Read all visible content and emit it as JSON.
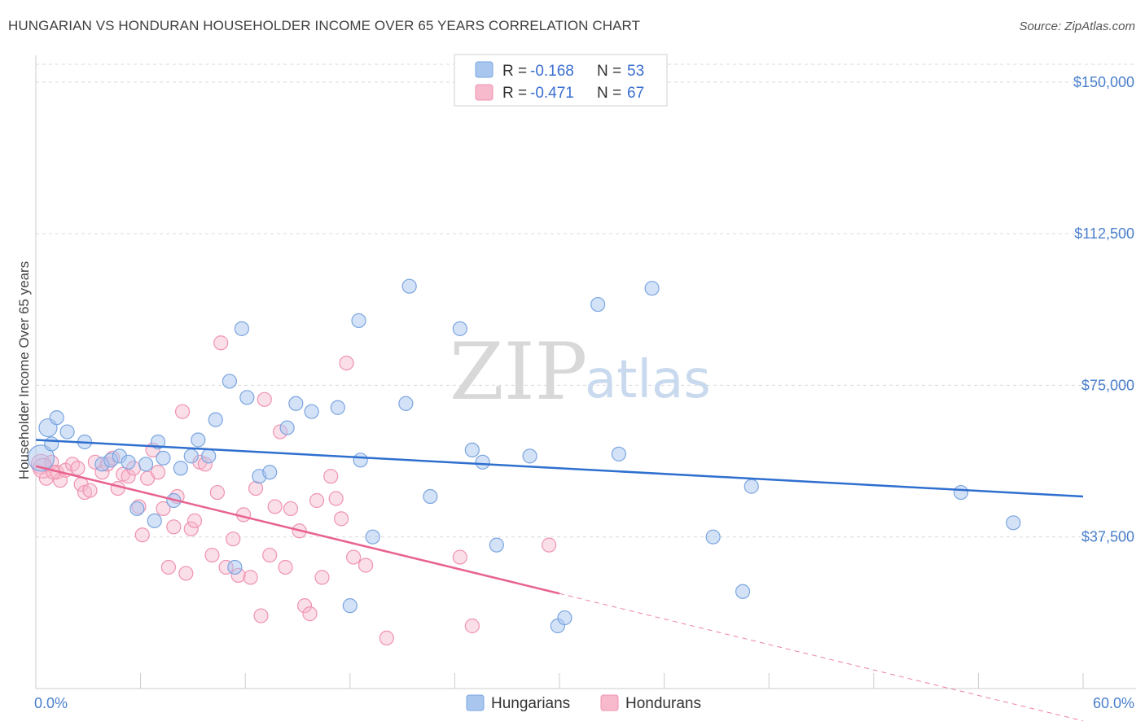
{
  "title": "HUNGARIAN VS HONDURAN HOUSEHOLDER INCOME OVER 65 YEARS CORRELATION CHART",
  "source": "Source: ZipAtlas.com",
  "watermark": {
    "zip": "ZIP",
    "atlas": "atlas"
  },
  "colors": {
    "hungarian_fill": "#a9c6ef",
    "hungarian_stroke": "#7aa5e0",
    "hungarian_line": "#2f6fcf",
    "honduran_fill": "#f7b9cc",
    "honduran_stroke": "#ef93b0",
    "honduran_line": "#e8638e",
    "grid": "#d9d9d9",
    "axis_text": "#4a7fcc"
  },
  "legend": {
    "rows": [
      {
        "r_label": "R = ",
        "r_value": "-0.168",
        "n_label": "N = ",
        "n_value": "53"
      },
      {
        "r_label": "R = ",
        "r_value": "-0.471",
        "n_label": "N = ",
        "n_value": "67"
      }
    ],
    "bottom": [
      "Hungarians",
      "Hondurans"
    ]
  },
  "chart_data": {
    "type": "scatter",
    "title": "HUNGARIAN VS HONDURAN HOUSEHOLDER INCOME OVER 65 YEARS CORRELATION CHART",
    "xlabel": "",
    "ylabel": "Householder Income Over 65 years",
    "xlim": [
      0,
      60
    ],
    "ylim": [
      0,
      155000
    ],
    "x_tick_labels": [
      "0.0%",
      "60.0%"
    ],
    "y_ticks": [
      37500,
      75000,
      112500,
      150000
    ],
    "y_tick_labels": [
      "$37,500",
      "$75,000",
      "$112,500",
      "$150,000"
    ],
    "grid": true,
    "legend_position": "top-center",
    "series": [
      {
        "name": "Hungarians",
        "r": -0.168,
        "n": 53,
        "trend": {
          "x": [
            0,
            60
          ],
          "y": [
            61500,
            47500
          ]
        },
        "points": [
          [
            0.3,
            57000
          ],
          [
            0.7,
            64500
          ],
          [
            1.2,
            67000
          ],
          [
            1.8,
            63500
          ],
          [
            2.8,
            61000
          ],
          [
            3.8,
            55500
          ],
          [
            4.3,
            56500
          ],
          [
            4.8,
            57500
          ],
          [
            5.3,
            56000
          ],
          [
            5.8,
            44500
          ],
          [
            6.3,
            55500
          ],
          [
            6.8,
            41500
          ],
          [
            7.0,
            61000
          ],
          [
            7.3,
            57000
          ],
          [
            7.9,
            46500
          ],
          [
            8.3,
            54500
          ],
          [
            8.9,
            57500
          ],
          [
            9.3,
            61500
          ],
          [
            9.9,
            57500
          ],
          [
            10.3,
            66500
          ],
          [
            11.1,
            76000
          ],
          [
            11.4,
            30000
          ],
          [
            11.8,
            89000
          ],
          [
            12.1,
            72000
          ],
          [
            12.8,
            52500
          ],
          [
            13.4,
            53500
          ],
          [
            14.4,
            64500
          ],
          [
            14.9,
            70500
          ],
          [
            15.8,
            68500
          ],
          [
            17.3,
            69500
          ],
          [
            18.0,
            20500
          ],
          [
            18.5,
            91000
          ],
          [
            18.6,
            56500
          ],
          [
            19.3,
            37500
          ],
          [
            21.2,
            70500
          ],
          [
            21.4,
            99500
          ],
          [
            22.6,
            47500
          ],
          [
            24.3,
            89000
          ],
          [
            25.0,
            59000
          ],
          [
            25.6,
            56000
          ],
          [
            26.4,
            35500
          ],
          [
            28.3,
            57500
          ],
          [
            29.9,
            15500
          ],
          [
            30.3,
            17500
          ],
          [
            32.2,
            95000
          ],
          [
            33.4,
            58000
          ],
          [
            35.3,
            99000
          ],
          [
            38.8,
            37500
          ],
          [
            40.5,
            24000
          ],
          [
            41.0,
            50000
          ],
          [
            53.0,
            48500
          ],
          [
            56.0,
            41000
          ],
          [
            0.9,
            60500
          ]
        ]
      },
      {
        "name": "Hondurans",
        "r": -0.471,
        "n": 67,
        "trend_solid": {
          "x": [
            0,
            30
          ],
          "y": [
            55000,
            23500
          ]
        },
        "trend_dashed": {
          "x": [
            30,
            60
          ],
          "y": [
            23500,
            -8000
          ]
        },
        "points": [
          [
            0.3,
            55500
          ],
          [
            0.6,
            52000
          ],
          [
            0.9,
            56000
          ],
          [
            1.2,
            53500
          ],
          [
            1.4,
            51500
          ],
          [
            1.7,
            54000
          ],
          [
            2.1,
            55500
          ],
          [
            2.4,
            54500
          ],
          [
            2.6,
            50500
          ],
          [
            2.8,
            48500
          ],
          [
            3.1,
            49000
          ],
          [
            3.4,
            56000
          ],
          [
            3.8,
            53500
          ],
          [
            4.1,
            55500
          ],
          [
            4.4,
            57000
          ],
          [
            4.7,
            49500
          ],
          [
            5.0,
            53000
          ],
          [
            5.3,
            52500
          ],
          [
            5.6,
            54500
          ],
          [
            5.9,
            45000
          ],
          [
            6.1,
            38000
          ],
          [
            6.4,
            52000
          ],
          [
            6.7,
            59000
          ],
          [
            7.0,
            53500
          ],
          [
            7.3,
            44500
          ],
          [
            7.6,
            30000
          ],
          [
            7.9,
            40000
          ],
          [
            8.1,
            47500
          ],
          [
            8.4,
            68500
          ],
          [
            8.6,
            28500
          ],
          [
            8.9,
            39500
          ],
          [
            9.1,
            41500
          ],
          [
            9.4,
            56000
          ],
          [
            9.7,
            55500
          ],
          [
            10.1,
            33000
          ],
          [
            10.4,
            48500
          ],
          [
            10.6,
            85500
          ],
          [
            10.9,
            30000
          ],
          [
            11.3,
            37000
          ],
          [
            11.6,
            28000
          ],
          [
            11.9,
            43000
          ],
          [
            12.3,
            27500
          ],
          [
            12.6,
            49500
          ],
          [
            12.9,
            18000
          ],
          [
            13.1,
            71500
          ],
          [
            13.4,
            33000
          ],
          [
            13.7,
            45000
          ],
          [
            14.0,
            63500
          ],
          [
            14.3,
            30000
          ],
          [
            14.6,
            44500
          ],
          [
            15.1,
            39000
          ],
          [
            15.4,
            20500
          ],
          [
            15.7,
            18500
          ],
          [
            16.1,
            46500
          ],
          [
            16.4,
            27500
          ],
          [
            16.9,
            52500
          ],
          [
            17.2,
            47000
          ],
          [
            17.5,
            42000
          ],
          [
            17.8,
            80500
          ],
          [
            18.2,
            32500
          ],
          [
            18.9,
            30500
          ],
          [
            20.1,
            12500
          ],
          [
            24.3,
            32500
          ],
          [
            25.0,
            15500
          ],
          [
            29.4,
            35500
          ],
          [
            0.4,
            54500
          ],
          [
            1.0,
            53500
          ]
        ]
      }
    ]
  }
}
